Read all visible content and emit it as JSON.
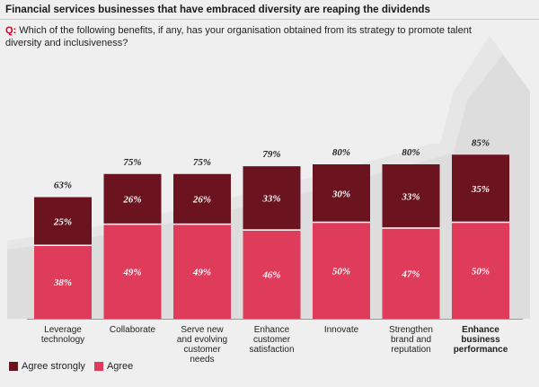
{
  "title": "Financial services businesses that have embraced diversity are reaping the dividends",
  "question": {
    "prefix": "Q:",
    "text": "Which of the following benefits, if any, has your organisation obtained from its strategy to promote talent diversity and inclusiveness?"
  },
  "colors": {
    "agree_strongly": "#6b1420",
    "agree": "#de3c5a",
    "arrow": "#d9d9d9",
    "text": "#222222"
  },
  "legend": [
    {
      "label": "Agree strongly",
      "color": "#6b1420"
    },
    {
      "label": "Agree",
      "color": "#de3c5a"
    }
  ],
  "chart_data": {
    "type": "bar",
    "stacked": true,
    "categories": [
      [
        "Leverage",
        "technology"
      ],
      [
        "Collaborate"
      ],
      [
        "Serve new",
        "and evolving",
        "customer",
        "needs"
      ],
      [
        "Enhance",
        "customer",
        "satisfaction"
      ],
      [
        "Innovate"
      ],
      [
        "Strengthen",
        "brand and",
        "reputation"
      ],
      [
        "Enhance",
        "business",
        "performance"
      ]
    ],
    "highlight_index": 6,
    "series": [
      {
        "name": "Agree",
        "values": [
          38,
          49,
          49,
          46,
          50,
          47,
          50
        ]
      },
      {
        "name": "Agree strongly",
        "values": [
          25,
          26,
          26,
          33,
          30,
          33,
          35
        ]
      }
    ],
    "value_labels": {
      "agree": [
        "38%",
        "49%",
        "49%",
        "46%",
        "50%",
        "47%",
        "50%"
      ],
      "agree_strongly": [
        "25%",
        "26%",
        "26%",
        "33%",
        "30%",
        "33%",
        "35%"
      ]
    },
    "totals": [
      "63%",
      "75%",
      "75%",
      "79%",
      "80%",
      "80%",
      "85%"
    ],
    "ylim": [
      0,
      100
    ]
  }
}
